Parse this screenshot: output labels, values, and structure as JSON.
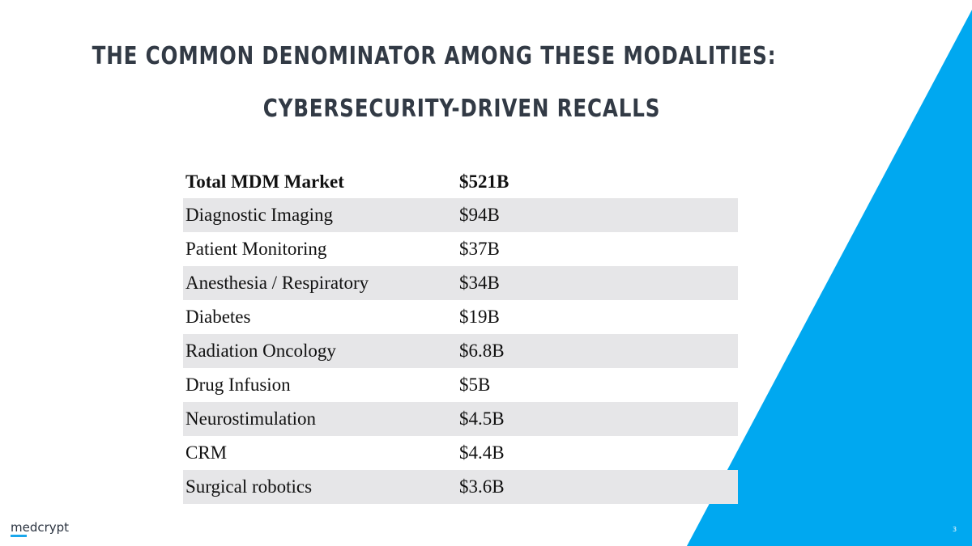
{
  "slide": {
    "title_line1": "THE COMMON DENOMINATOR AMONG THESE MODALITIES:",
    "title_line2": "CYBERSECURITY-DRIVEN RECALLS",
    "accent_color": "#00a8f0",
    "table": {
      "header": {
        "label": "Total MDM Market",
        "value": "$521B"
      },
      "rows": [
        {
          "label": "Diagnostic Imaging",
          "value": "$94B"
        },
        {
          "label": "Patient Monitoring",
          "value": "$37B"
        },
        {
          "label": "Anesthesia / Respiratory",
          "value": "$34B"
        },
        {
          "label": "Diabetes",
          "value": "$19B"
        },
        {
          "label": "Radiation Oncology",
          "value": "$6.8B"
        },
        {
          "label": "Drug Infusion",
          "value": "$5B"
        },
        {
          "label": "Neurostimulation",
          "value": "$4.5B"
        },
        {
          "label": "CRM",
          "value": "$4.4B"
        },
        {
          "label": "Surgical robotics",
          "value": "$3.6B"
        }
      ]
    },
    "logo_text": "medcrypt",
    "page_number": "3"
  }
}
